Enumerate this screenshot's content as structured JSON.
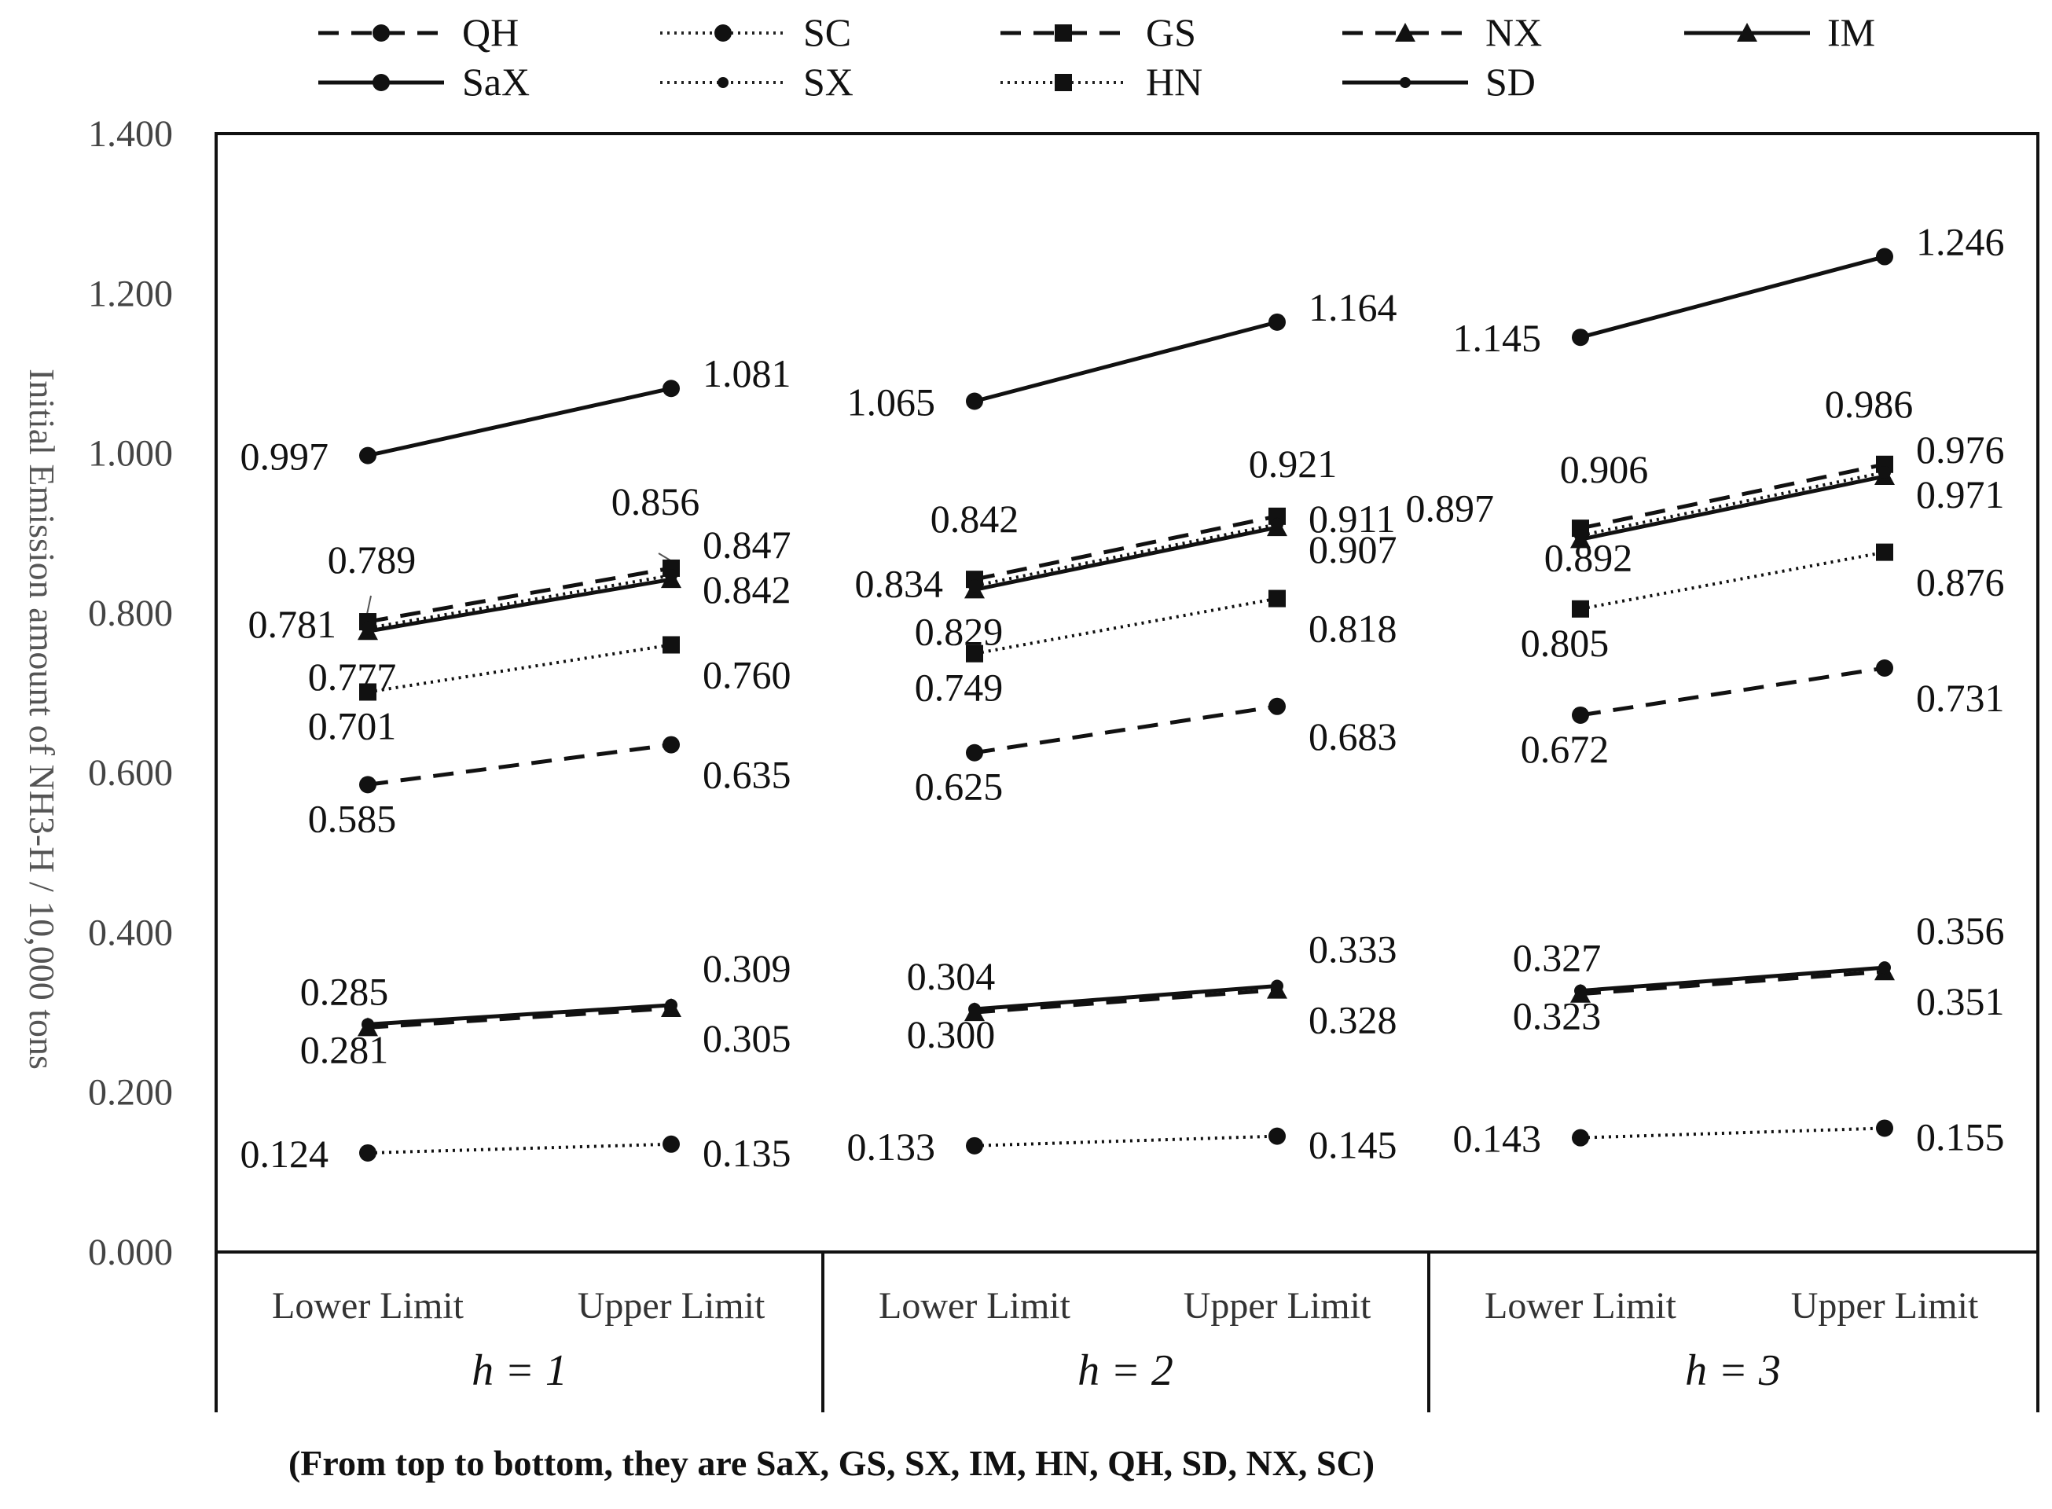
{
  "chart_data": {
    "type": "line",
    "ylabel": "Initial Emission amount of NH3-H / 10,000 tons",
    "ylim": [
      0,
      1.4
    ],
    "yticks": [
      "0.000",
      "0.200",
      "0.400",
      "0.600",
      "0.800",
      "1.000",
      "1.200",
      "1.400"
    ],
    "categories": [
      "Lower Limit",
      "Upper Limit"
    ],
    "groups": [
      "h = 1",
      "h = 2",
      "h = 3"
    ],
    "note": "(From top to bottom, they are SaX, GS, SX, IM, HN, QH, SD, NX, SC)",
    "series": [
      {
        "name": "QH",
        "dash": "dashed",
        "marker": "circle",
        "values": [
          [
            0.585,
            0.635
          ],
          [
            0.625,
            0.683
          ],
          [
            0.672,
            0.731
          ]
        ],
        "labels": [
          [
            "0.585",
            "0.635"
          ],
          [
            "0.625",
            "0.683"
          ],
          [
            "0.672",
            "0.731"
          ]
        ]
      },
      {
        "name": "SC",
        "dash": "dotted",
        "marker": "circle",
        "values": [
          [
            0.124,
            0.135
          ],
          [
            0.133,
            0.145
          ],
          [
            0.143,
            0.155
          ]
        ],
        "labels": [
          [
            "0.124",
            "0.135"
          ],
          [
            "0.133",
            "0.145"
          ],
          [
            "0.143",
            "0.155"
          ]
        ]
      },
      {
        "name": "GS",
        "dash": "dashed",
        "marker": "square",
        "values": [
          [
            0.789,
            0.856
          ],
          [
            0.842,
            0.921
          ],
          [
            0.906,
            0.986
          ]
        ],
        "labels": [
          [
            "0.789",
            "0.856"
          ],
          [
            "0.842",
            "0.921"
          ],
          [
            "0.906",
            "0.986"
          ]
        ]
      },
      {
        "name": "NX",
        "dash": "dashed",
        "marker": "triangle",
        "values": [
          [
            0.281,
            0.305
          ],
          [
            0.3,
            0.328
          ],
          [
            0.323,
            0.351
          ]
        ],
        "labels": [
          [
            "0.281",
            "0.305"
          ],
          [
            "0.300",
            "0.328"
          ],
          [
            "0.323",
            "0.351"
          ]
        ]
      },
      {
        "name": "IM",
        "dash": "solid",
        "marker": "triangle",
        "values": [
          [
            0.777,
            0.842
          ],
          [
            0.829,
            0.907
          ],
          [
            0.892,
            0.971
          ]
        ],
        "labels": [
          [
            "0.777",
            "0.842"
          ],
          [
            "0.829",
            "0.907"
          ],
          [
            "0.892",
            "0.971"
          ]
        ]
      },
      {
        "name": "SaX",
        "dash": "solid",
        "marker": "circle",
        "values": [
          [
            0.997,
            1.081
          ],
          [
            1.065,
            1.164
          ],
          [
            1.145,
            1.246
          ]
        ],
        "labels": [
          [
            "0.997",
            "1.081"
          ],
          [
            "1.065",
            "1.164"
          ],
          [
            "1.145",
            "1.246"
          ]
        ]
      },
      {
        "name": "SX",
        "dash": "dotted",
        "marker": "smallcircle",
        "values": [
          [
            0.781,
            0.847
          ],
          [
            0.834,
            0.911
          ],
          [
            0.897,
            0.976
          ]
        ],
        "labels": [
          [
            "0.781",
            "0.847"
          ],
          [
            "0.834",
            "0.911"
          ],
          [
            "0.897",
            "0.976"
          ]
        ]
      },
      {
        "name": "HN",
        "dash": "dotted",
        "marker": "square",
        "values": [
          [
            0.701,
            0.76
          ],
          [
            0.749,
            0.818
          ],
          [
            0.805,
            0.876
          ]
        ],
        "labels": [
          [
            "0.701",
            "0.760"
          ],
          [
            "0.749",
            "0.818"
          ],
          [
            "0.805",
            "0.876"
          ]
        ]
      },
      {
        "name": "SD",
        "dash": "solid",
        "marker": "smallcircle",
        "values": [
          [
            0.285,
            0.309
          ],
          [
            0.304,
            0.333
          ],
          [
            0.327,
            0.356
          ]
        ],
        "labels": [
          [
            "0.285",
            "0.309"
          ],
          [
            "0.304",
            "0.333"
          ],
          [
            "0.327",
            "0.356"
          ]
        ]
      }
    ]
  }
}
